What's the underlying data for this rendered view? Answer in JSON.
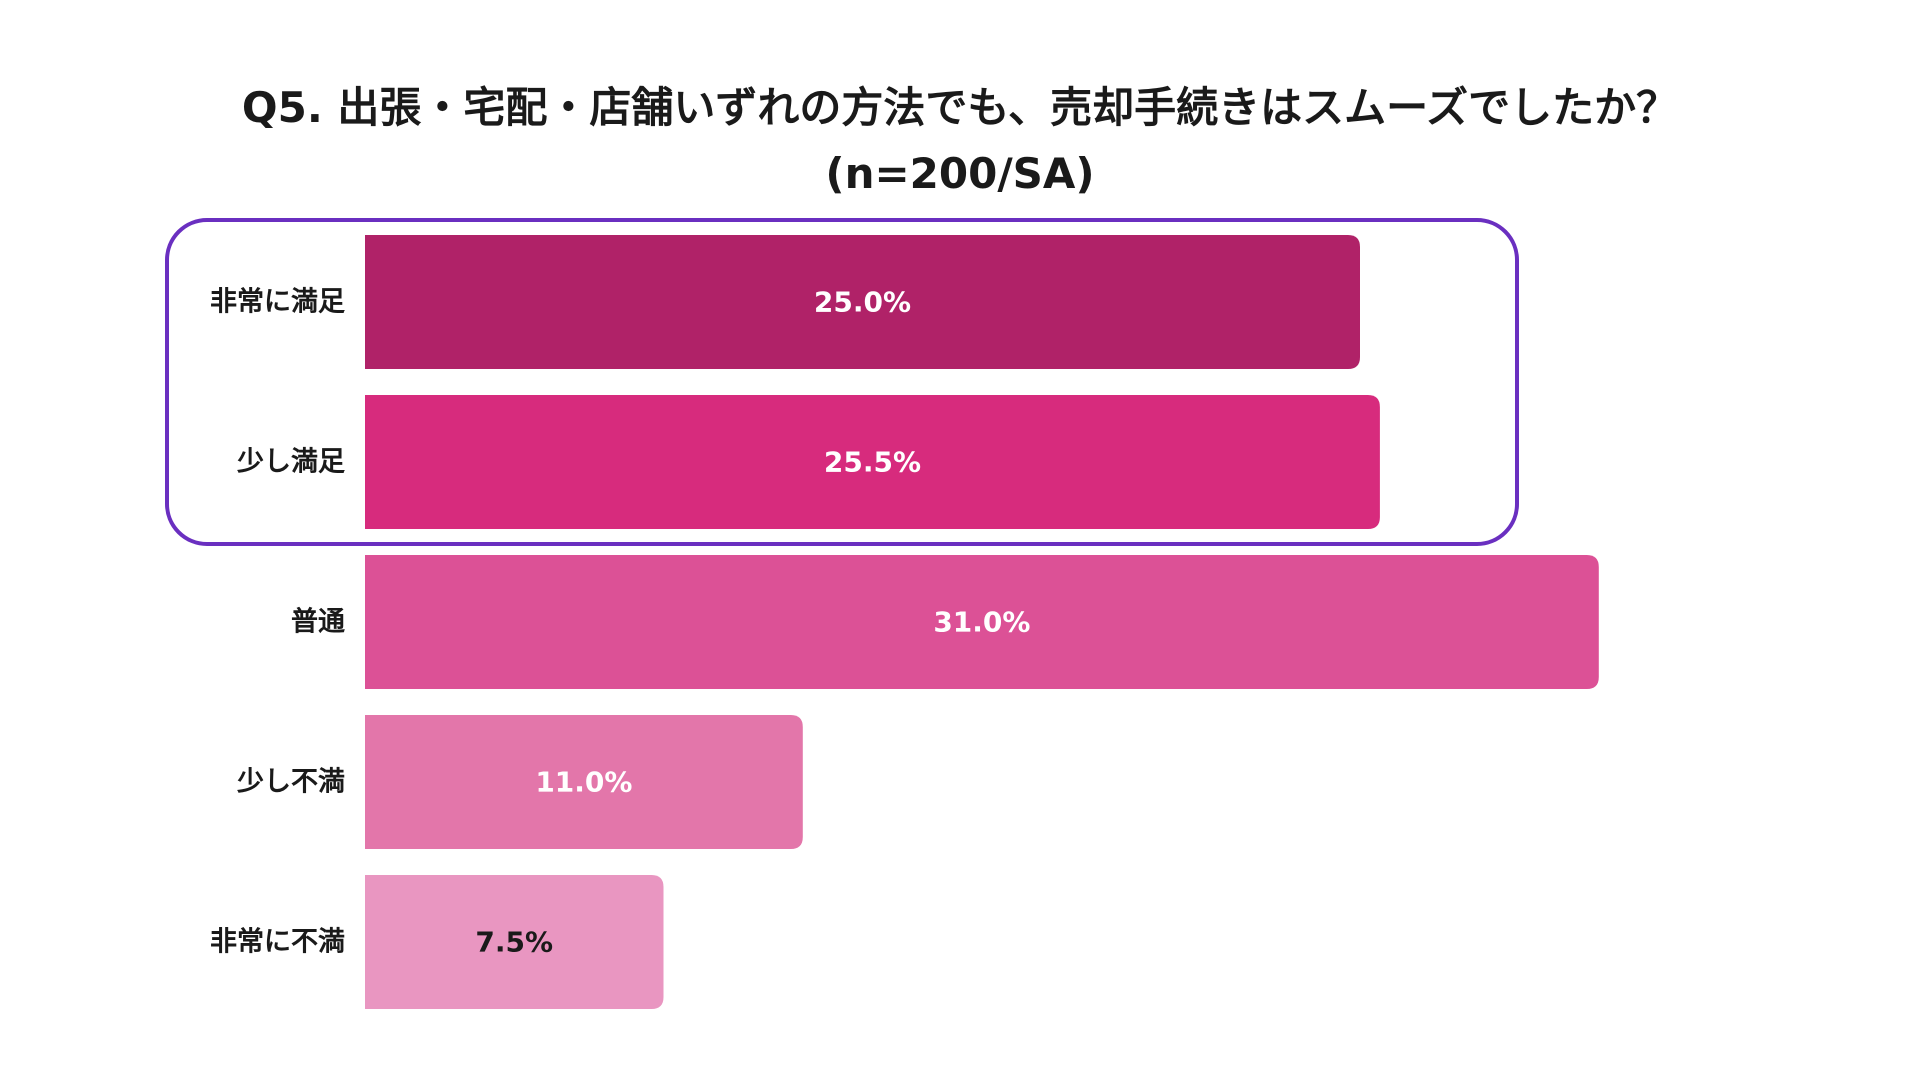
{
  "chart_data": {
    "type": "bar",
    "orientation": "horizontal",
    "title": "Q5. 出張・宅配・店舗いずれの方法でも、売却手続きはスムーズでしたか？",
    "subtitle": "(n=200/SA)",
    "categories": [
      "非常に満足",
      "少し満足",
      "普通",
      "少し不満",
      "非常に不満"
    ],
    "values": [
      25.0,
      25.5,
      31.0,
      11.0,
      7.5
    ],
    "data_labels": [
      "25.0%",
      "25.5%",
      "31.0%",
      "11.0%",
      "7.5%"
    ],
    "bar_colors": [
      "#b02268",
      "#d72b7d",
      "#dc5196",
      "#e376aa",
      "#e996c1"
    ],
    "label_colors": [
      "#ffffff",
      "#ffffff",
      "#ffffff",
      "#ffffff",
      "#1a1a1a"
    ],
    "highlight": {
      "categories": [
        "非常に満足",
        "少し満足"
      ],
      "color": "#6a2fc0"
    },
    "xlim": [
      0,
      35
    ],
    "grid": false,
    "legend": "none"
  }
}
